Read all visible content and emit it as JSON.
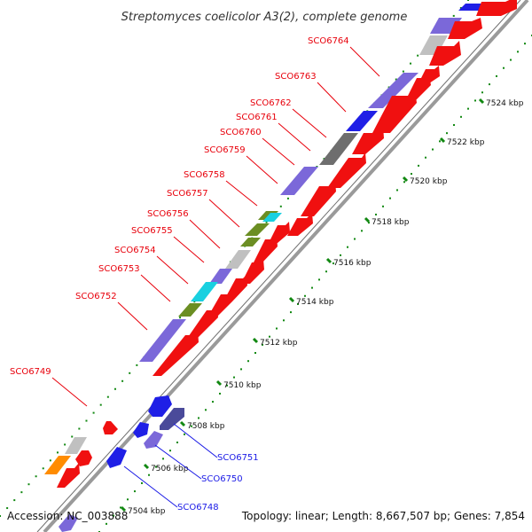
{
  "title": "Streptomyces coelicolor A3(2), complete genome",
  "footer": {
    "accession": "Accession: NC_003888",
    "summary": "Topology: linear; Length: 8,667,507 bp; Genes: 7,854"
  },
  "colors": {
    "forward_label": "#e8000b",
    "reverse_label": "#1a1ae6",
    "forward_gene": "#f01010",
    "feature_purple": "#7b68d9",
    "feature_blue": "#1f1fe6",
    "feature_grey": "#c0c0c0",
    "feature_darkgrey": "#6e6e6e",
    "feature_cyan": "#19d0e0",
    "feature_olive": "#6b8e23",
    "feature_orange": "#ff8c00",
    "axis": "#9b9b9b",
    "scale_dots": "#118811"
  },
  "scale_ticks": [
    "7524 kbp",
    "7522 kbp",
    "7520 kbp",
    "7518 kbp",
    "7516 kbp",
    "7514 kbp",
    "7512 kbp",
    "7510 kbp",
    "7508 kbp",
    "7506 kbp",
    "7504 kbp"
  ],
  "forward_labels": [
    "SCO6764",
    "SCO6763",
    "SCO6762",
    "SCO6761",
    "SCO6760",
    "SCO6759",
    "SCO6758",
    "SCO6757",
    "SCO6756",
    "SCO6755",
    "SCO6754",
    "SCO6753",
    "SCO6752",
    "SCO6749"
  ],
  "reverse_labels": [
    "SCO6751",
    "SCO6750",
    "SCO6748"
  ]
}
